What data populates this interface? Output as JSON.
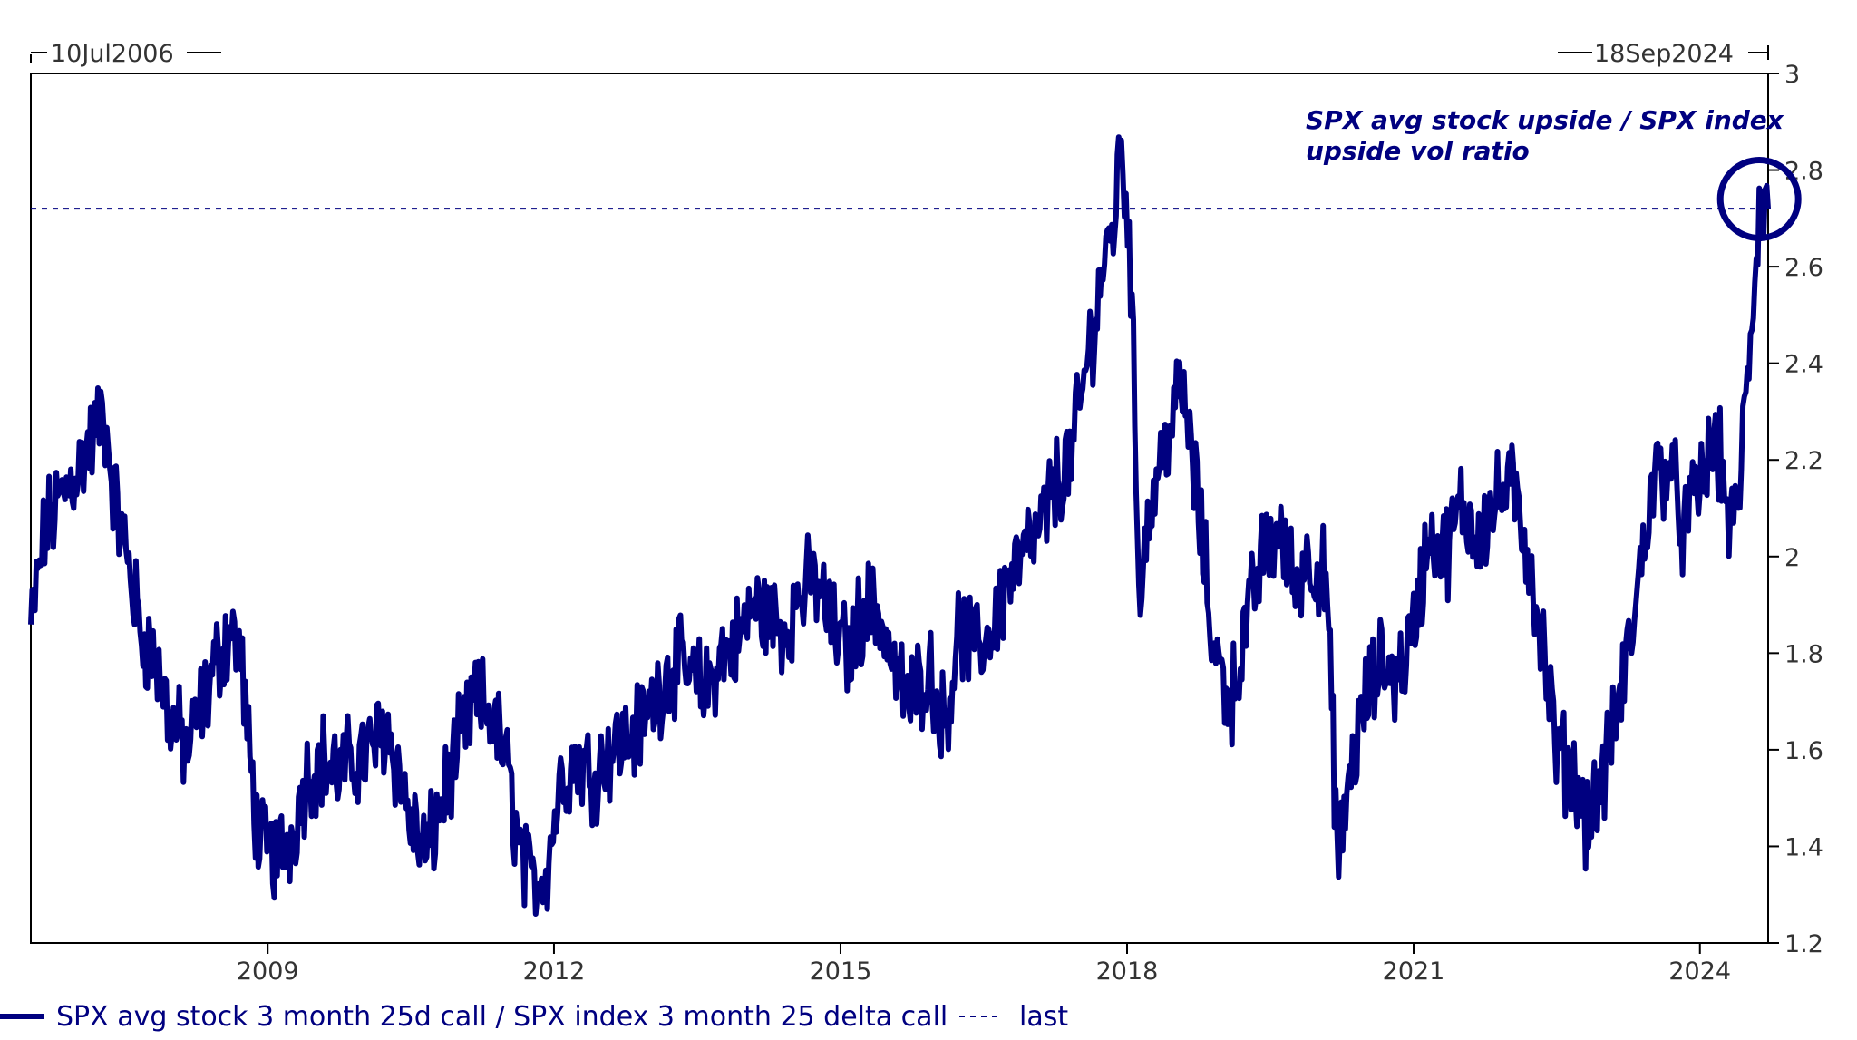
{
  "chart_data": {
    "type": "line",
    "title": "",
    "date_range": {
      "start": "10Jul2006",
      "end": "18Sep2024"
    },
    "x_ticks": [
      "2009",
      "2012",
      "2015",
      "2018",
      "2021",
      "2024"
    ],
    "y_ticks": [
      "1.2",
      "1.4",
      "1.6",
      "1.8",
      "2",
      "2.2",
      "2.4",
      "2.6",
      "2.8",
      "3"
    ],
    "ylim": [
      1.2,
      3.0
    ],
    "y_axis_side": "right",
    "grid": false,
    "legend_position": "bottom",
    "annotation": {
      "lines": [
        "SPX avg stock upside / SPX index",
        "upside vol ratio"
      ]
    },
    "last_value": 2.72,
    "series": [
      {
        "name": "SPX avg stock 3 month 25d call / SPX index 3 month 25 delta call",
        "color": "#000080",
        "points": [
          [
            "2006-07-10",
            1.85
          ],
          [
            "2006-09-01",
            2.05
          ],
          [
            "2006-11-01",
            2.12
          ],
          [
            "2007-01-01",
            2.18
          ],
          [
            "2007-03-01",
            2.24
          ],
          [
            "2007-04-15",
            2.3
          ],
          [
            "2007-06-01",
            2.1
          ],
          [
            "2007-07-15",
            2.0
          ],
          [
            "2007-09-01",
            1.85
          ],
          [
            "2007-11-01",
            1.78
          ],
          [
            "2008-01-01",
            1.65
          ],
          [
            "2008-03-01",
            1.6
          ],
          [
            "2008-05-01",
            1.7
          ],
          [
            "2008-07-01",
            1.8
          ],
          [
            "2008-08-15",
            1.85
          ],
          [
            "2008-09-20",
            1.8
          ],
          [
            "2008-10-20",
            1.6
          ],
          [
            "2008-12-01",
            1.4
          ],
          [
            "2009-02-01",
            1.38
          ],
          [
            "2009-04-01",
            1.42
          ],
          [
            "2009-06-01",
            1.55
          ],
          [
            "2009-08-01",
            1.58
          ],
          [
            "2009-10-01",
            1.55
          ],
          [
            "2009-12-01",
            1.58
          ],
          [
            "2010-02-01",
            1.6
          ],
          [
            "2010-04-01",
            1.65
          ],
          [
            "2010-05-20",
            1.55
          ],
          [
            "2010-07-01",
            1.45
          ],
          [
            "2010-09-01",
            1.38
          ],
          [
            "2010-11-01",
            1.5
          ],
          [
            "2011-01-01",
            1.6
          ],
          [
            "2011-03-01",
            1.7
          ],
          [
            "2011-05-01",
            1.68
          ],
          [
            "2011-07-01",
            1.58
          ],
          [
            "2011-08-20",
            1.4
          ],
          [
            "2011-10-01",
            1.32
          ],
          [
            "2011-12-01",
            1.35
          ],
          [
            "2012-02-01",
            1.55
          ],
          [
            "2012-04-01",
            1.58
          ],
          [
            "2012-06-01",
            1.55
          ],
          [
            "2012-08-01",
            1.6
          ],
          [
            "2012-10-01",
            1.62
          ],
          [
            "2012-12-01",
            1.65
          ],
          [
            "2013-02-01",
            1.72
          ],
          [
            "2013-04-01",
            1.78
          ],
          [
            "2013-06-01",
            1.75
          ],
          [
            "2013-08-01",
            1.72
          ],
          [
            "2013-10-01",
            1.8
          ],
          [
            "2013-12-01",
            1.82
          ],
          [
            "2014-02-01",
            1.9
          ],
          [
            "2014-04-01",
            1.88
          ],
          [
            "2014-06-01",
            1.85
          ],
          [
            "2014-08-01",
            1.92
          ],
          [
            "2014-10-01",
            1.95
          ],
          [
            "2014-12-01",
            1.85
          ],
          [
            "2015-02-01",
            1.8
          ],
          [
            "2015-04-01",
            1.9
          ],
          [
            "2015-06-01",
            1.88
          ],
          [
            "2015-08-01",
            1.75
          ],
          [
            "2015-10-01",
            1.7
          ],
          [
            "2015-12-01",
            1.78
          ],
          [
            "2016-02-01",
            1.65
          ],
          [
            "2016-04-01",
            1.85
          ],
          [
            "2016-06-01",
            1.8
          ],
          [
            "2016-08-01",
            1.85
          ],
          [
            "2016-10-01",
            1.95
          ],
          [
            "2016-12-01",
            2.0
          ],
          [
            "2017-02-01",
            2.05
          ],
          [
            "2017-04-01",
            2.15
          ],
          [
            "2017-06-01",
            2.2
          ],
          [
            "2017-08-01",
            2.4
          ],
          [
            "2017-10-01",
            2.6
          ],
          [
            "2017-11-15",
            2.7
          ],
          [
            "2017-12-10",
            2.88
          ],
          [
            "2018-01-15",
            2.6
          ],
          [
            "2018-02-15",
            1.95
          ],
          [
            "2018-04-01",
            2.1
          ],
          [
            "2018-06-01",
            2.25
          ],
          [
            "2018-08-01",
            2.35
          ],
          [
            "2018-10-01",
            2.1
          ],
          [
            "2018-12-01",
            1.8
          ],
          [
            "2019-02-01",
            1.7
          ],
          [
            "2019-04-01",
            1.85
          ],
          [
            "2019-06-01",
            2.0
          ],
          [
            "2019-08-01",
            2.05
          ],
          [
            "2019-10-01",
            1.95
          ],
          [
            "2019-12-01",
            2.0
          ],
          [
            "2020-02-01",
            1.95
          ],
          [
            "2020-03-20",
            1.35
          ],
          [
            "2020-05-01",
            1.55
          ],
          [
            "2020-07-01",
            1.7
          ],
          [
            "2020-09-01",
            1.78
          ],
          [
            "2020-11-01",
            1.75
          ],
          [
            "2021-01-01",
            1.85
          ],
          [
            "2021-03-01",
            2.05
          ],
          [
            "2021-05-01",
            2.0
          ],
          [
            "2021-07-01",
            2.1
          ],
          [
            "2021-09-01",
            2.05
          ],
          [
            "2021-11-01",
            2.1
          ],
          [
            "2022-01-01",
            2.15
          ],
          [
            "2022-03-01",
            2.05
          ],
          [
            "2022-05-01",
            1.85
          ],
          [
            "2022-07-01",
            1.6
          ],
          [
            "2022-09-01",
            1.55
          ],
          [
            "2022-11-01",
            1.45
          ],
          [
            "2023-01-01",
            1.55
          ],
          [
            "2023-03-01",
            1.7
          ],
          [
            "2023-05-01",
            1.9
          ],
          [
            "2023-07-01",
            2.15
          ],
          [
            "2023-09-01",
            2.2
          ],
          [
            "2023-11-01",
            2.05
          ],
          [
            "2024-01-01",
            2.15
          ],
          [
            "2024-03-01",
            2.25
          ],
          [
            "2024-04-15",
            2.1
          ],
          [
            "2024-05-15",
            2.05
          ],
          [
            "2024-07-01",
            2.35
          ],
          [
            "2024-08-15",
            2.72
          ],
          [
            "2024-09-18",
            2.72
          ]
        ]
      }
    ],
    "last_series": {
      "name": "last",
      "color": "#000080",
      "style": "dashed"
    }
  }
}
